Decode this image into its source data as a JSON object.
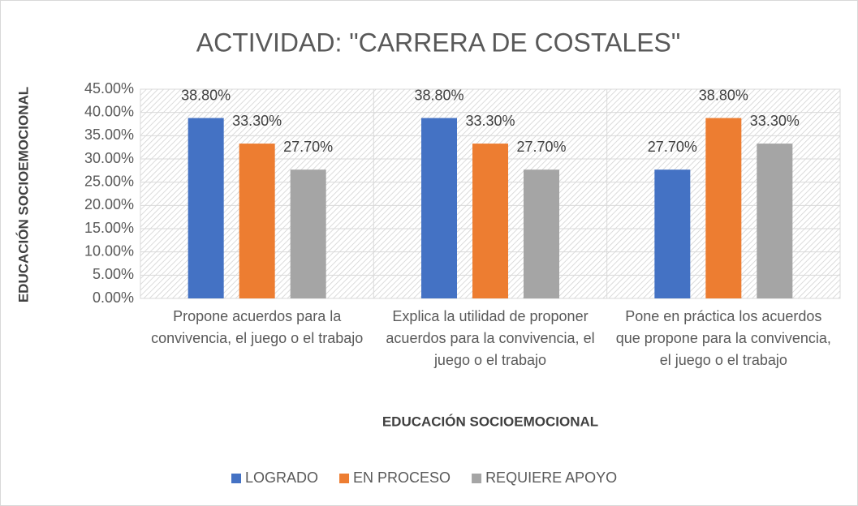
{
  "chart_data": {
    "type": "bar",
    "title": "ACTIVIDAD: \"CARRERA DE COSTALES\"",
    "x_label": "EDUCACIÓN SOCIOEMOCIONAL",
    "y_label": "EDUCACIÓN SOCIOEMOCIONAL",
    "categories": [
      "Propone acuerdos para la convivencia, el juego o el trabajo",
      "Explica la utilidad de proponer acuerdos para la convivencia, el juego o el trabajo",
      "Pone en práctica los acuerdos que propone para la convivencia, el juego o el trabajo"
    ],
    "series": [
      {
        "name": "LOGRADO",
        "color": "#4472c4",
        "values": [
          38.8,
          38.8,
          27.7
        ],
        "value_labels": [
          "38.80%",
          "38.80%",
          "27.70%"
        ]
      },
      {
        "name": "EN PROCESO",
        "color": "#ed7d31",
        "values": [
          33.3,
          33.3,
          38.8
        ],
        "value_labels": [
          "33.30%",
          "33.30%",
          "38.80%"
        ]
      },
      {
        "name": "REQUIERE APOYO",
        "color": "#a5a5a5",
        "values": [
          27.7,
          27.7,
          33.3
        ],
        "value_labels": [
          "27.70%",
          "27.70%",
          "33.30%"
        ]
      }
    ],
    "ylim": [
      0,
      45
    ],
    "yticks": [
      {
        "value": 0,
        "label": "0.00%"
      },
      {
        "value": 5,
        "label": "5.00%"
      },
      {
        "value": 10,
        "label": "10.00%"
      },
      {
        "value": 15,
        "label": "15.00%"
      },
      {
        "value": 20,
        "label": "20.00%"
      },
      {
        "value": 25,
        "label": "25.00%"
      },
      {
        "value": 30,
        "label": "30.00%"
      },
      {
        "value": 35,
        "label": "35.00%"
      },
      {
        "value": 40,
        "label": "40.00%"
      },
      {
        "value": 45,
        "label": "45.00%"
      }
    ],
    "grid": true,
    "legend": "bottom"
  }
}
